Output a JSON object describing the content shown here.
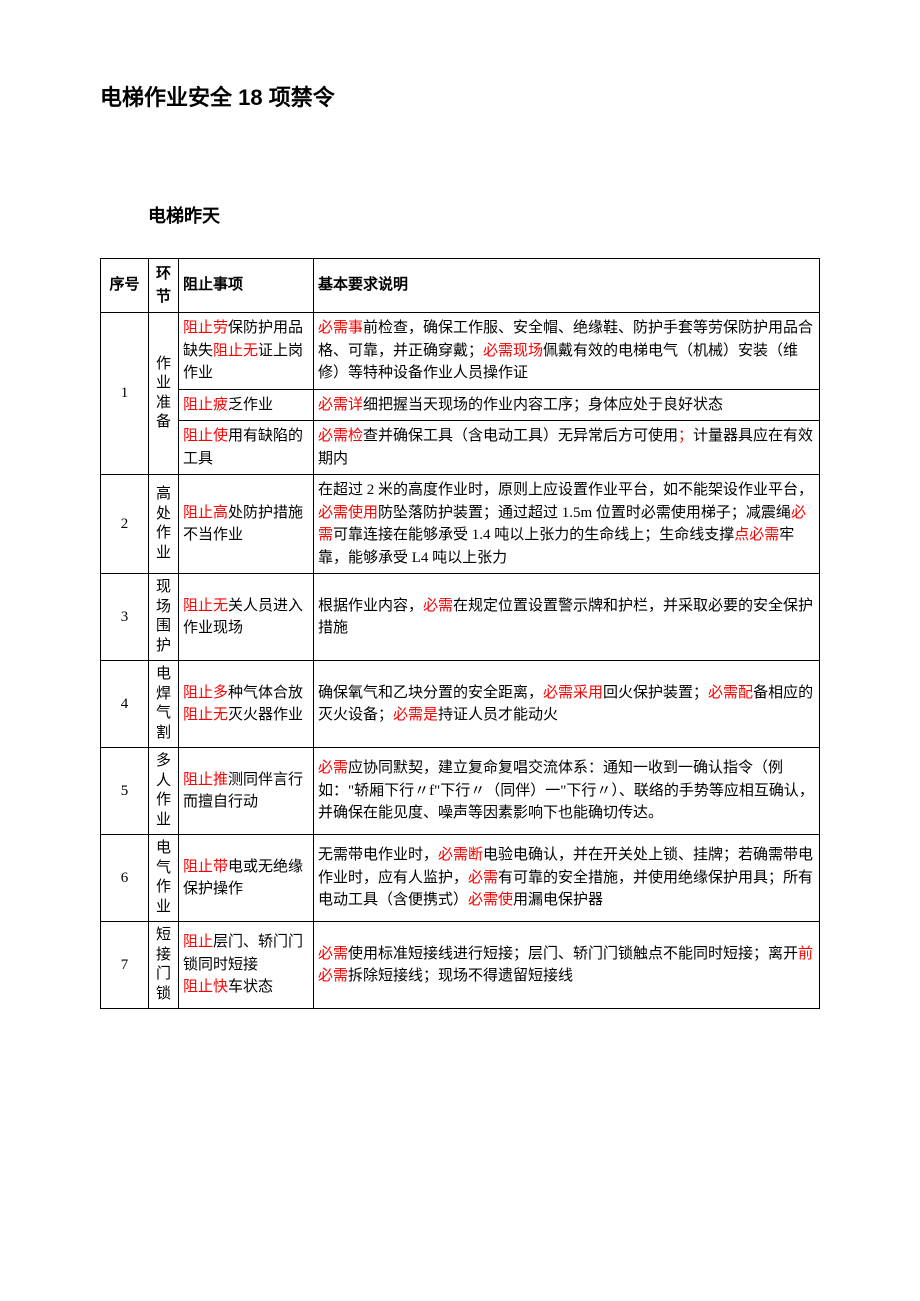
{
  "title": "电梯作业安全 18 项禁令",
  "subtitle": "电梯昨天",
  "headers": {
    "seq": "序号",
    "link": "环节",
    "prevent": "阻止事项",
    "desc": "基本要求说明"
  },
  "rows": [
    {
      "seq": "1",
      "link": "作业准备",
      "sub": [
        {
          "prevent_parts": [
            {
              "t": "阻止劳",
              "red": true
            },
            {
              "t": "保防护用品缺失",
              "red": false
            },
            {
              "t": "阻止无",
              "red": true
            },
            {
              "t": "证上岗作业",
              "red": false
            }
          ],
          "desc_parts": [
            {
              "t": "必需事",
              "red": true
            },
            {
              "t": "前检查，确保工作服、安全帽、绝缘鞋、防护手套等劳保防护用品合格、可靠，并正确穿戴；",
              "red": false
            },
            {
              "t": "必需现场",
              "red": true
            },
            {
              "t": "佩戴有效的电梯电气（机械）安装（维修）等特种设备作业人员操作证",
              "red": false
            }
          ]
        },
        {
          "prevent_parts": [
            {
              "t": "阻止疲",
              "red": true
            },
            {
              "t": "乏作业",
              "red": false
            }
          ],
          "desc_parts": [
            {
              "t": "必需详",
              "red": true
            },
            {
              "t": "细把握当天现场的作业内容工序；身体应处于良好状态",
              "red": false
            }
          ]
        },
        {
          "prevent_parts": [
            {
              "t": "阻止使",
              "red": true
            },
            {
              "t": "用有缺陷的工具",
              "red": false
            }
          ],
          "desc_parts": [
            {
              "t": "必需检",
              "red": true
            },
            {
              "t": "查并确保工具（含电动工具）无异常后方可使用",
              "red": false
            },
            {
              "t": "；",
              "red": true
            },
            {
              "t": "计量器具应在有效期内",
              "red": false
            }
          ]
        }
      ]
    },
    {
      "seq": "2",
      "link": "高处作业",
      "sub": [
        {
          "prevent_parts": [
            {
              "t": "阻止高",
              "red": true
            },
            {
              "t": "处防护措施不当作业",
              "red": false
            }
          ],
          "desc_parts": [
            {
              "t": "在超过 2 米的高度作业时，原则上应设置作业平台，如不能架设作业平台，",
              "red": false
            },
            {
              "t": "必需使用",
              "red": true
            },
            {
              "t": "防坠落防护装置；通过超过 1.5m 位置时必需使用梯子；减震绳",
              "red": false
            },
            {
              "t": "必需",
              "red": true
            },
            {
              "t": "可靠连接在能够承受 1.4 吨以上张力的生命线上；生命线支撑",
              "red": false
            },
            {
              "t": "点必需",
              "red": true
            },
            {
              "t": "牢靠，能够承受 L4 吨以上张力",
              "red": false
            }
          ]
        }
      ]
    },
    {
      "seq": "3",
      "link": "现场围护",
      "sub": [
        {
          "prevent_parts": [
            {
              "t": "阻止无",
              "red": true
            },
            {
              "t": "关人员进入作业现场",
              "red": false
            }
          ],
          "desc_parts": [
            {
              "t": "根据作业内容，",
              "red": false
            },
            {
              "t": "必需",
              "red": true
            },
            {
              "t": "在规定位置设置警示牌和护栏，并采取必要的安全保护措施",
              "red": false
            }
          ]
        }
      ]
    },
    {
      "seq": "4",
      "link": "电焊气割",
      "sub": [
        {
          "prevent_parts": [
            {
              "t": "阻止多",
              "red": true
            },
            {
              "t": "种气体合放\n",
              "red": false
            },
            {
              "t": "阻止无",
              "red": true
            },
            {
              "t": "灭火器作业",
              "red": false
            }
          ],
          "desc_parts": [
            {
              "t": "确保氧气和乙块分置的安全距离，",
              "red": false
            },
            {
              "t": "必需采用",
              "red": true
            },
            {
              "t": "回火保护装置；",
              "red": false
            },
            {
              "t": "必需配",
              "red": true
            },
            {
              "t": "备相应的灭火设备；",
              "red": false
            },
            {
              "t": "必需是",
              "red": true
            },
            {
              "t": "持证人员才能动火",
              "red": false
            }
          ]
        }
      ]
    },
    {
      "seq": "5",
      "link": "多人作业",
      "sub": [
        {
          "prevent_parts": [
            {
              "t": "阻止推",
              "red": true
            },
            {
              "t": "测同伴言行而擅自行动",
              "red": false
            }
          ],
          "desc_parts": [
            {
              "t": "必需",
              "red": true
            },
            {
              "t": "应协同默契，建立复命复唱交流体系：通知一收到一确认指令（例如：\"轿厢下行〃f\"下行〃（同伴）一\"下行〃）、联络的手势等应相互确认，并确保在能见度、噪声等因素影响下也能确切传达。",
              "red": false
            }
          ]
        }
      ]
    },
    {
      "seq": "6",
      "link": "电气作业",
      "sub": [
        {
          "prevent_parts": [
            {
              "t": "阻止带",
              "red": true
            },
            {
              "t": "电或无绝缘保护操作",
              "red": false
            }
          ],
          "desc_parts": [
            {
              "t": "无需带电作业时，",
              "red": false
            },
            {
              "t": "必需断",
              "red": true
            },
            {
              "t": "电验电确认，并在开关处上锁、挂牌；若确需带电作业时，应有人监护，",
              "red": false
            },
            {
              "t": "必需",
              "red": true
            },
            {
              "t": "有可靠的安全措施，并使用绝缘保护用具；所有电动工具（含便携式）",
              "red": false
            },
            {
              "t": "必需使",
              "red": true
            },
            {
              "t": "用漏电保护器",
              "red": false
            }
          ]
        }
      ]
    },
    {
      "seq": "7",
      "link": "短接门锁",
      "sub": [
        {
          "prevent_parts": [
            {
              "t": "阻止",
              "red": true
            },
            {
              "t": "层门、轿门门锁同时短接\n",
              "red": false
            },
            {
              "t": "阻止快",
              "red": true
            },
            {
              "t": "车状态",
              "red": false
            }
          ],
          "desc_parts": [
            {
              "t": "必需",
              "red": true
            },
            {
              "t": "使用标准短接线进行短接；层门、轿门门锁触点不能同时短接；离开",
              "red": false
            },
            {
              "t": "前必需",
              "red": true
            },
            {
              "t": "拆除短接线；现场不得遗留短接线",
              "red": false
            }
          ]
        }
      ]
    }
  ]
}
